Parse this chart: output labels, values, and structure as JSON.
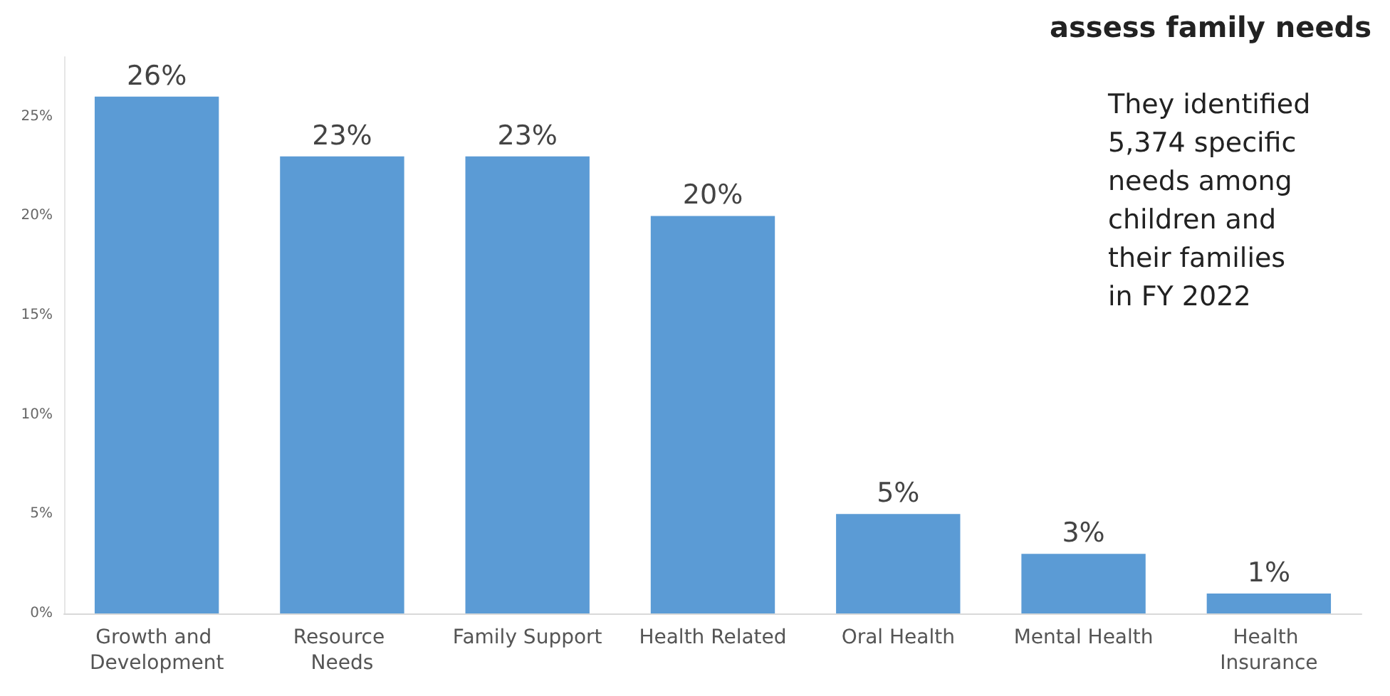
{
  "chart_data": {
    "type": "bar",
    "title": "assess family needs",
    "annotations": [
      "They identified 5,374 specific needs among children and their families in FY 2022"
    ],
    "categories": [
      "Growth and Development",
      "Resource Needs",
      "Family Support",
      "Health Related",
      "Oral Health",
      "Mental Health",
      "Health Insurance"
    ],
    "values": [
      26,
      23,
      23,
      20,
      5,
      3,
      1
    ],
    "color": "#5b9bd5",
    "value_labels": [
      "26%",
      "23%",
      "23%",
      "20%",
      "5%",
      "3%",
      "1%"
    ],
    "ylim": [
      0,
      28
    ],
    "yticks": [
      {
        "value": 0,
        "label": "0%"
      },
      {
        "value": 5,
        "label": "5%"
      },
      {
        "value": 10,
        "label": "10%"
      },
      {
        "value": 15,
        "label": "15%"
      },
      {
        "value": 20,
        "label": "20%"
      },
      {
        "value": 25,
        "label": "25%"
      }
    ],
    "grid": false
  }
}
